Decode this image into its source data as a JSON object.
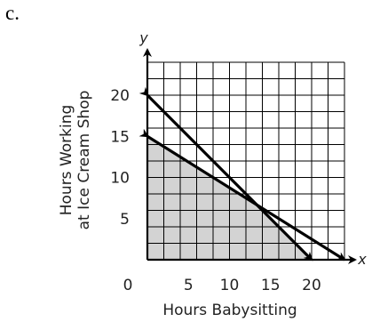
{
  "panel_label": "c.",
  "chart_data": {
    "type": "line",
    "title": "",
    "xlabel": "Hours Babysitting",
    "ylabel_lines": [
      "Hours Working",
      "at Ice Cream Shop"
    ],
    "x_var": "x",
    "y_var": "y",
    "xlim": [
      0,
      24
    ],
    "ylim": [
      0,
      24
    ],
    "grid_step": 2,
    "grid": true,
    "x_ticks": [
      {
        "value": 0,
        "label": "0"
      },
      {
        "value": 5,
        "label": "5"
      },
      {
        "value": 10,
        "label": "10"
      },
      {
        "value": 15,
        "label": "15"
      },
      {
        "value": 20,
        "label": "20"
      }
    ],
    "y_ticks": [
      {
        "value": 5,
        "label": "5"
      },
      {
        "value": 10,
        "label": "10"
      },
      {
        "value": 15,
        "label": "15"
      },
      {
        "value": 20,
        "label": "20"
      }
    ],
    "lines": [
      {
        "from": [
          0,
          20
        ],
        "to": [
          20,
          0
        ],
        "arrows": "both"
      },
      {
        "from": [
          0,
          15
        ],
        "to": [
          24,
          0
        ],
        "arrows": "both"
      }
    ],
    "shaded_region": [
      [
        0,
        0
      ],
      [
        0,
        15
      ],
      [
        13.33,
        6.67
      ],
      [
        20,
        0
      ]
    ],
    "colors": {
      "shade": "#d3d3d3",
      "grid": "#000000",
      "line": "#000000"
    }
  }
}
